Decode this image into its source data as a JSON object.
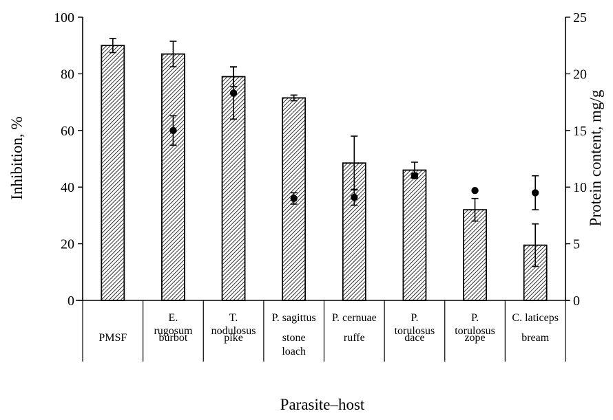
{
  "chart_data": {
    "type": "bar",
    "xlabel": "Parasite–host",
    "ylabel_left": "Inhibition, %",
    "ylabel_right": "Protein content, mg/g",
    "ylim_left": [
      0,
      100
    ],
    "ylim_right": [
      0,
      25
    ],
    "yticks_left": [
      "0",
      "20",
      "40",
      "60",
      "80",
      "100"
    ],
    "yticks_right": [
      "0",
      "5",
      "10",
      "15",
      "20",
      "25"
    ],
    "categories": [
      {
        "parasite": [
          "PMSF"
        ],
        "host": []
      },
      {
        "parasite": [
          "E.",
          "rugosum"
        ],
        "host": [
          "burbot"
        ]
      },
      {
        "parasite": [
          "T.",
          "nodulosus"
        ],
        "host": [
          "pike"
        ]
      },
      {
        "parasite": [
          "P. sagittus"
        ],
        "host": [
          "stone",
          "loach"
        ]
      },
      {
        "parasite": [
          "P. cernuae"
        ],
        "host": [
          "ruffe"
        ]
      },
      {
        "parasite": [
          "P.",
          "torulosus"
        ],
        "host": [
          "dace"
        ]
      },
      {
        "parasite": [
          "P.",
          "torulosus"
        ],
        "host": [
          "zope"
        ]
      },
      {
        "parasite": [
          "C. laticeps"
        ],
        "host": [
          "bream"
        ]
      }
    ],
    "series": [
      {
        "type": "bar",
        "axis": "left",
        "values": [
          90,
          87,
          79,
          71.5,
          48.5,
          46,
          32,
          19.5
        ],
        "errors": [
          2.5,
          4.5,
          3.5,
          1.0,
          9.5,
          2.8,
          4.0,
          7.5
        ]
      },
      {
        "type": "scatter",
        "axis": "right",
        "values": [
          null,
          15.0,
          18.3,
          9.0,
          9.1,
          11.0,
          9.7,
          9.5
        ],
        "errors": [
          null,
          1.3,
          2.3,
          0.5,
          0.7,
          0.2,
          null,
          1.5
        ]
      }
    ]
  }
}
